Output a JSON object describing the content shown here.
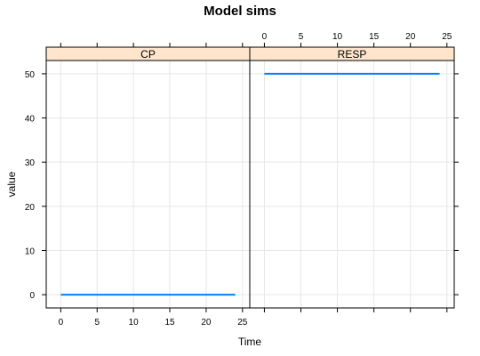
{
  "chart_data": {
    "type": "line",
    "title": "Model sims",
    "xlabel": "Time",
    "ylabel": "value",
    "xlim": [
      -2,
      26
    ],
    "ylim": [
      -3,
      53
    ],
    "x_ticks": [
      "0",
      "5",
      "10",
      "15",
      "20",
      "25"
    ],
    "y_ticks": [
      "0",
      "10",
      "20",
      "30",
      "40",
      "50"
    ],
    "grid": true,
    "line_color": "#0080ff",
    "strip_color": "#ffe5cc",
    "panels": [
      {
        "strip": "CP",
        "series": [
          {
            "x": [
              0,
              24
            ],
            "y": [
              0,
              0
            ]
          }
        ]
      },
      {
        "strip": "RESP",
        "series": [
          {
            "x": [
              0,
              24
            ],
            "y": [
              50,
              50
            ]
          }
        ]
      }
    ]
  }
}
